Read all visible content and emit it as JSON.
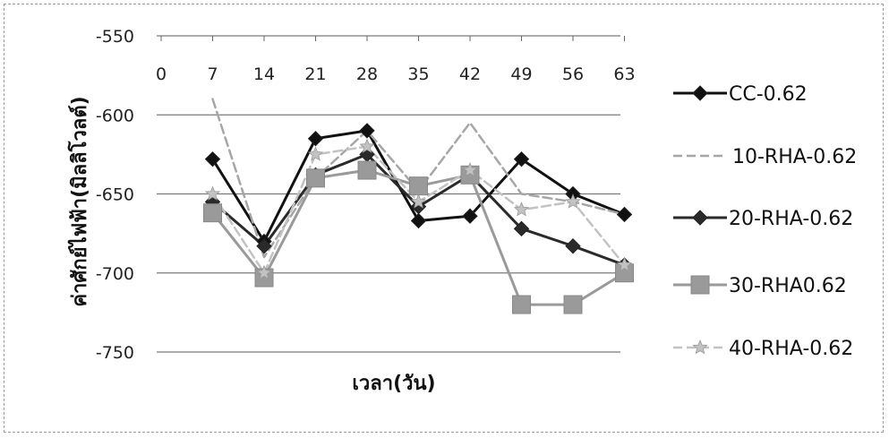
{
  "chart_data": {
    "type": "line",
    "title": "",
    "xlabel": "เวลา(วัน)",
    "ylabel": "ค่าศักย์ไฟฟ้า(มิลลิโวลต์)",
    "x": [
      0,
      7,
      14,
      21,
      28,
      35,
      42,
      49,
      56,
      63
    ],
    "x_tick_labels": [
      "0",
      "7",
      "14",
      "21",
      "28",
      "35",
      "42",
      "49",
      "56",
      "63"
    ],
    "y_tick_labels": [
      "-550",
      "-600",
      "-650",
      "-700",
      "-750"
    ],
    "ylim": [
      -750,
      -550
    ],
    "y_reversed": true,
    "x_axis_position": "top",
    "grid": "horizontal",
    "legend_position": "right",
    "series": [
      {
        "name": "CC-0.62",
        "color": "#111111",
        "marker": "diamond",
        "dashed": false,
        "points": [
          [
            7,
            -628
          ],
          [
            14,
            -680
          ],
          [
            21,
            -615
          ],
          [
            28,
            -610
          ],
          [
            35,
            -667
          ],
          [
            42,
            -664
          ],
          [
            49,
            -628
          ],
          [
            56,
            -650
          ],
          [
            63,
            -663
          ]
        ]
      },
      {
        "name": "10-RHA-0.62",
        "color": "#a6a6a6",
        "marker": "none",
        "dashed": true,
        "points": [
          [
            7,
            -590
          ],
          [
            14,
            -690
          ],
          [
            21,
            -640
          ],
          [
            28,
            -610
          ],
          [
            35,
            -648
          ],
          [
            42,
            -605
          ],
          [
            49,
            -650
          ],
          [
            56,
            -655
          ],
          [
            63,
            -663
          ]
        ]
      },
      {
        "name": "20-RHA-0.62",
        "color": "#2a2a2a",
        "marker": "diamond",
        "dashed": false,
        "points": [
          [
            7,
            -655
          ],
          [
            14,
            -683
          ],
          [
            21,
            -638
          ],
          [
            28,
            -625
          ],
          [
            35,
            -658
          ],
          [
            42,
            -638
          ],
          [
            49,
            -672
          ],
          [
            56,
            -683
          ],
          [
            63,
            -695
          ]
        ]
      },
      {
        "name": "30-RHA0.62",
        "color": "#9a9a9a",
        "marker": "square",
        "dashed": false,
        "points": [
          [
            7,
            -662
          ],
          [
            14,
            -703
          ],
          [
            21,
            -640
          ],
          [
            28,
            -635
          ],
          [
            35,
            -645
          ],
          [
            42,
            -638
          ],
          [
            49,
            -720
          ],
          [
            56,
            -720
          ],
          [
            63,
            -700
          ]
        ]
      },
      {
        "name": "40-RHA-0.62",
        "color": "#c2c2c2",
        "marker": "star",
        "dashed": true,
        "points": [
          [
            7,
            -650
          ],
          [
            14,
            -700
          ],
          [
            21,
            -625
          ],
          [
            28,
            -620
          ],
          [
            35,
            -655
          ],
          [
            42,
            -635
          ],
          [
            49,
            -660
          ],
          [
            56,
            -655
          ],
          [
            63,
            -695
          ]
        ]
      }
    ]
  }
}
